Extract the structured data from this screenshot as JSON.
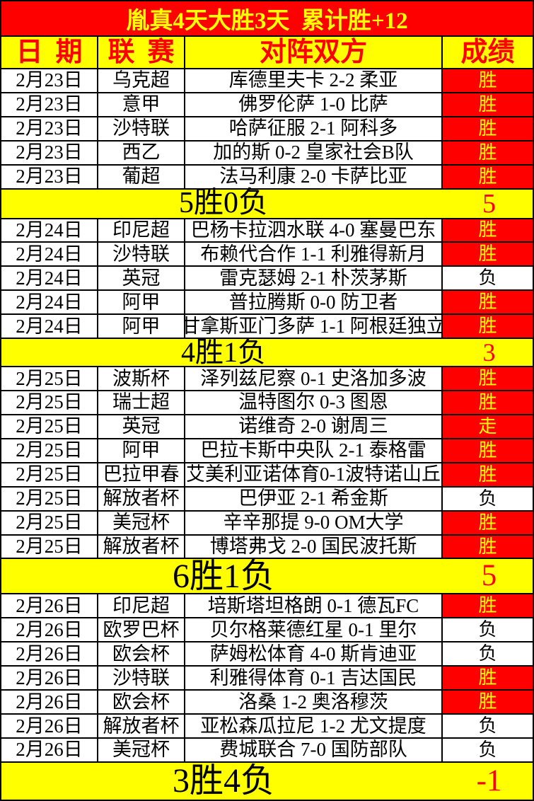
{
  "title": "胤真4天大胜3天  累计胜+12",
  "header": {
    "date": "日期",
    "league": "联赛",
    "match": "对阵双方",
    "result": "成绩"
  },
  "table": {
    "groups": [
      {
        "rows": [
          {
            "date": "2月23日",
            "league": "乌克超",
            "match": "库德里夫卡 2-2 柔亚",
            "result": "胜",
            "outcome": "win"
          },
          {
            "date": "2月23日",
            "league": "意甲",
            "match": "佛罗伦萨 1-0 比萨",
            "result": "胜",
            "outcome": "win"
          },
          {
            "date": "2月23日",
            "league": "沙特联",
            "match": "哈萨征服 2-1 阿科多",
            "result": "胜",
            "outcome": "win"
          },
          {
            "date": "2月23日",
            "league": "西乙",
            "match": "加的斯 0-2 皇家社会B队",
            "result": "胜",
            "outcome": "win"
          },
          {
            "date": "2月23日",
            "league": "葡超",
            "match": "法马利康 2-0 卡萨比亚",
            "result": "胜",
            "outcome": "win"
          }
        ],
        "summary": {
          "label": "5胜0负",
          "score": "5"
        }
      },
      {
        "rows": [
          {
            "date": "2月24日",
            "league": "印尼超",
            "match": "巴杨卡拉泗水联 4-0 塞曼巴东",
            "result": "胜",
            "outcome": "win"
          },
          {
            "date": "2月24日",
            "league": "沙特联",
            "match": "布赖代合作 1-1 利雅得新月",
            "result": "胜",
            "outcome": "win"
          },
          {
            "date": "2月24日",
            "league": "英冠",
            "match": "雷克瑟姆 2-1 朴茨茅斯",
            "result": "负",
            "outcome": "loss"
          },
          {
            "date": "2月24日",
            "league": "阿甲",
            "match": "普拉腾斯 0-0 防卫者",
            "result": "胜",
            "outcome": "win"
          },
          {
            "date": "2月24日",
            "league": "阿甲",
            "match": "甘拿斯亚门多萨 1-1 阿根廷独立",
            "result": "胜",
            "outcome": "win"
          }
        ],
        "summary": {
          "label": "4胜1负",
          "score": "3"
        }
      },
      {
        "rows": [
          {
            "date": "2月25日",
            "league": "波斯杯",
            "match": "泽列兹尼察 0-1 史洛加多波",
            "result": "胜",
            "outcome": "win"
          },
          {
            "date": "2月25日",
            "league": "瑞士超",
            "match": "温特图尔 0-3 图恩",
            "result": "胜",
            "outcome": "win"
          },
          {
            "date": "2月25日",
            "league": "英冠",
            "match": "诺维奇 2-0 谢周三",
            "result": "走",
            "outcome": "push"
          },
          {
            "date": "2月25日",
            "league": "阿甲",
            "match": "巴拉卡斯中央队 2-1 泰格雷",
            "result": "胜",
            "outcome": "win"
          },
          {
            "date": "2月25日",
            "league": "巴拉甲春",
            "match": "艾美利亚诺体育0-1波特诺山丘",
            "result": "胜",
            "outcome": "win"
          },
          {
            "date": "2月25日",
            "league": "解放者杯",
            "match": "巴伊亚 2-1 希金斯",
            "result": "负",
            "outcome": "loss"
          },
          {
            "date": "2月25日",
            "league": "美冠杯",
            "match": "辛辛那提 9-0 OM大学",
            "result": "胜",
            "outcome": "win"
          },
          {
            "date": "2月25日",
            "league": "解放者杯",
            "match": "博塔弗戈 2-0 国民波托斯",
            "result": "胜",
            "outcome": "win"
          }
        ],
        "summary": {
          "label": "6胜1负",
          "score": "5"
        }
      },
      {
        "rows": [
          {
            "date": "2月26日",
            "league": "印尼超",
            "match": "培斯塔坦格朗 0-1 德瓦FC",
            "result": "胜",
            "outcome": "win"
          },
          {
            "date": "2月26日",
            "league": "欧罗巴杯",
            "match": "贝尔格莱德红星 0-1 里尔",
            "result": "负",
            "outcome": "loss"
          },
          {
            "date": "2月26日",
            "league": "欧会杯",
            "match": "萨姆松体育 4-0 斯肯迪亚",
            "result": "负",
            "outcome": "loss"
          },
          {
            "date": "2月26日",
            "league": "沙特联",
            "match": "利雅得体育 0-1 吉达国民",
            "result": "胜",
            "outcome": "win"
          },
          {
            "date": "2月26日",
            "league": "欧会杯",
            "match": "洛桑 1-2 奥洛穆茨",
            "result": "胜",
            "outcome": "win"
          },
          {
            "date": "2月26日",
            "league": "解放者杯",
            "match": "亚松森瓜拉尼 1-2 尤文提度",
            "result": "负",
            "outcome": "loss"
          },
          {
            "date": "2月26日",
            "league": "美冠杯",
            "match": "费城联合 7-0 国防部队",
            "result": "负",
            "outcome": "loss"
          }
        ],
        "summary": {
          "label": "3胜4负",
          "score": "-1"
        }
      }
    ]
  },
  "colors": {
    "red": "#fe0000",
    "yellow": "#ffff00",
    "loss_text": "#000000",
    "win_text": "#ffff00",
    "summary_text": "#000000",
    "summary_number": "#fe0000"
  }
}
